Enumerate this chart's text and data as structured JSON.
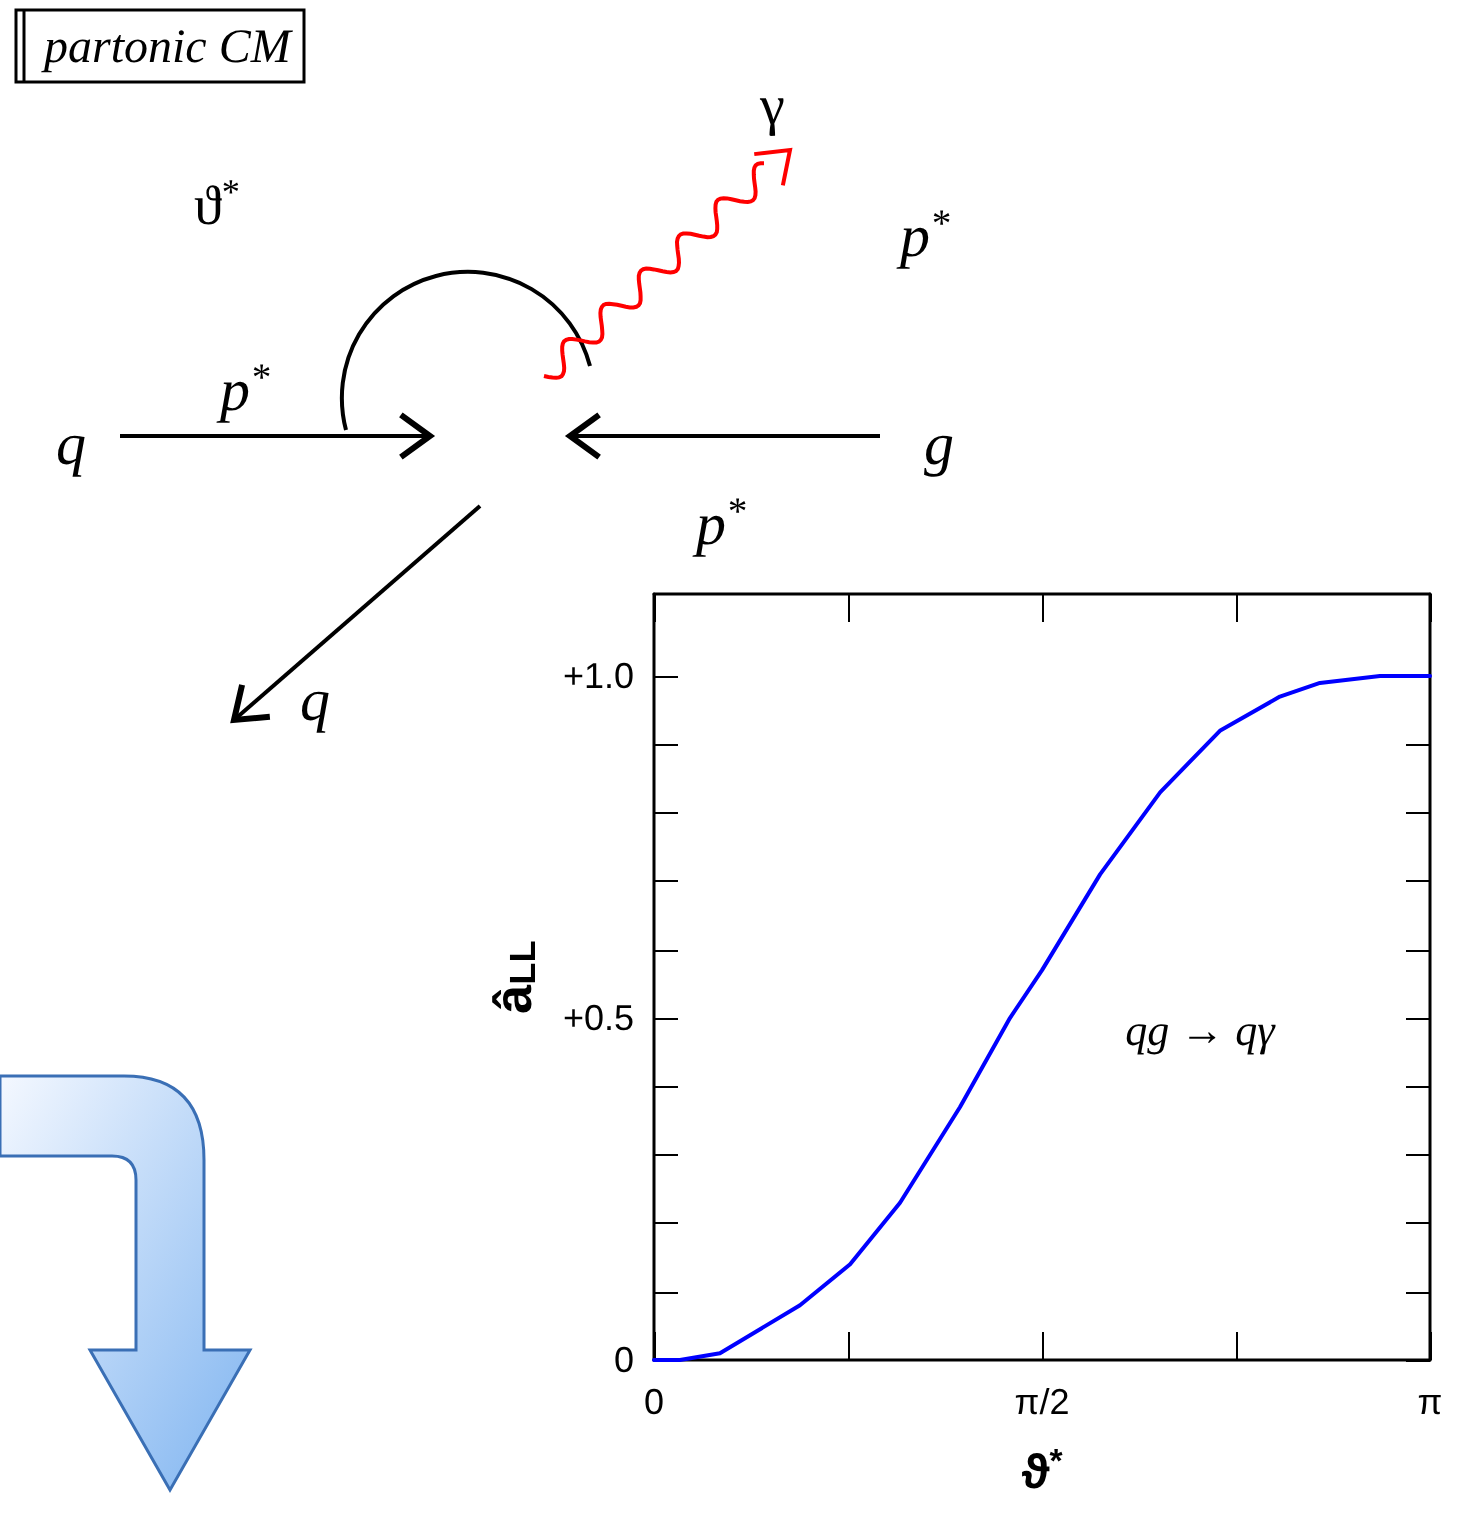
{
  "chart_data": {
    "type": "line",
    "xlabel": "ϑ$^{*}$",
    "ylabel": "â$_{LL}$",
    "x": [
      0,
      0.105,
      0.267,
      0.591,
      0.794,
      0.996,
      1.239,
      1.441,
      1.571,
      1.806,
      2.049,
      2.291,
      2.534,
      2.696,
      2.939,
      3.1416
    ],
    "series": [
      {
        "color": "#0000ff",
        "values": [
          0,
          0,
          0.01,
          0.08,
          0.14,
          0.23,
          0.37,
          0.5,
          0.57,
          0.71,
          0.83,
          0.92,
          0.97,
          0.99,
          1.0,
          1.0
        ]
      }
    ],
    "xlim": [
      0,
      3.1416
    ],
    "ylim": [
      0,
      1.12
    ],
    "xticks": [
      0,
      {
        "value": 0.7854,
        "label": null
      },
      {
        "value": 1.5708,
        "label": "π/2"
      },
      {
        "value": 2.3562,
        "label": null
      },
      {
        "value": 3.1416,
        "label": "π"
      }
    ],
    "yticks": [
      0,
      {
        "value": 0.1,
        "label": null
      },
      {
        "value": 0.2,
        "label": null
      },
      {
        "value": 0.3,
        "label": null
      },
      {
        "value": 0.4,
        "label": null
      },
      {
        "value": 0.5,
        "label": "+0.5"
      },
      {
        "value": 0.6,
        "label": null
      },
      {
        "value": 0.7,
        "label": null
      },
      {
        "value": 0.8,
        "label": null
      },
      {
        "value": 0.9,
        "label": null
      },
      {
        "value": 1.0,
        "label": "+1.0"
      }
    ],
    "marker": "none",
    "line_style": "solid",
    "annotations": [
      "partonic CM",
      "γ",
      "p$^{*}$",
      "ϑ$^{*}$",
      "p$^{*}$",
      "q",
      "g",
      "p$^{*}$",
      "q",
      "qg → qγ"
    ]
  }
}
